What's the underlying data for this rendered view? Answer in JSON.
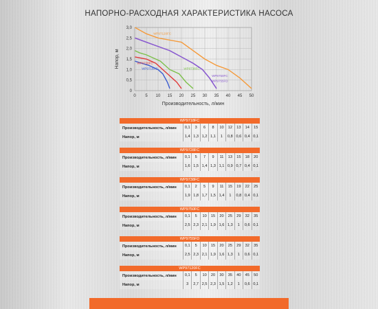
{
  "page_title": "НАПОРНО-РАСХОДНАЯ ХАРАКТЕРИСТИКА НАСОСА",
  "chart_data": {
    "type": "line",
    "xlabel": "Производительность, л/мин",
    "ylabel": "Напор, м",
    "xlim": [
      0,
      50
    ],
    "ylim": [
      0,
      3.0
    ],
    "x_ticks": [
      "0",
      "5",
      "10",
      "15",
      "20",
      "25",
      "30",
      "35",
      "40",
      "45",
      "50"
    ],
    "y_ticks": [
      "0",
      "0,5",
      "1,0",
      "1,5",
      "2,0",
      "2,5",
      "3,0"
    ],
    "grid": true,
    "series": [
      {
        "name": "WP9718FC",
        "color": "#3a5bd0",
        "x": [
          0.1,
          3,
          6,
          8,
          10,
          12,
          13,
          14,
          15
        ],
        "y": [
          1.4,
          1.3,
          1.2,
          1.1,
          1,
          0.8,
          0.6,
          0.4,
          0.1
        ]
      },
      {
        "name": "WP9728FC",
        "color": "#e03a3a",
        "x": [
          0.1,
          5,
          7,
          9,
          11,
          13,
          15,
          18,
          20
        ],
        "y": [
          1.6,
          1.5,
          1.4,
          1.3,
          1.1,
          0.9,
          0.7,
          0.4,
          0.1
        ]
      },
      {
        "name": "WP9738FC",
        "color": "#7cc04a",
        "x": [
          0.1,
          2,
          5,
          9,
          11,
          15,
          19,
          22,
          25
        ],
        "y": [
          1.9,
          1.8,
          1.7,
          1.5,
          1.4,
          1,
          0.8,
          0.4,
          0.1
        ]
      },
      {
        "name": "WP9750FC",
        "color": "#8a5bd0",
        "x": [
          0.1,
          5,
          10,
          15,
          20,
          25,
          29,
          32,
          35
        ],
        "y": [
          2.5,
          2.3,
          2.1,
          1.9,
          1.6,
          1.3,
          1,
          0.6,
          0.1
        ]
      },
      {
        "name": "WP9755FD",
        "color": "#8a5bd0",
        "x": [
          0.1,
          5,
          10,
          15,
          20,
          25,
          29,
          32,
          35
        ],
        "y": [
          2.5,
          2.3,
          2.1,
          1.9,
          1.6,
          1.3,
          1,
          0.6,
          0.1
        ]
      },
      {
        "name": "WP97120FC",
        "color": "#f59a3a",
        "x": [
          0.1,
          5,
          10,
          20,
          30,
          35,
          40,
          45,
          50
        ],
        "y": [
          3,
          2.7,
          2.5,
          2.3,
          1.5,
          1.2,
          1,
          0.6,
          0.1
        ]
      }
    ]
  },
  "tables": [
    {
      "model": "WP9718FC",
      "flow_label": "Производительность, л/мин",
      "head_label": "Напор, м",
      "flow": [
        "0,1",
        "3",
        "6",
        "8",
        "10",
        "12",
        "13",
        "14",
        "15"
      ],
      "head": [
        "1,4",
        "1,3",
        "1,2",
        "1,1",
        "1",
        "0,8",
        "0,6",
        "0,4",
        "0,1"
      ]
    },
    {
      "model": "WP9728FC",
      "flow_label": "Производительность, л/мин",
      "head_label": "Напор, м",
      "flow": [
        "0,1",
        "5",
        "7",
        "9",
        "11",
        "13",
        "15",
        "18",
        "20"
      ],
      "head": [
        "1,6",
        "1,5",
        "1,4",
        "1,3",
        "1,1",
        "0,9",
        "0,7",
        "0,4",
        "0,1"
      ]
    },
    {
      "model": "WP9738FC",
      "flow_label": "Производительность, л/мин",
      "head_label": "Напор, м",
      "flow": [
        "0,1",
        "2",
        "5",
        "9",
        "11",
        "15",
        "19",
        "22",
        "25"
      ],
      "head": [
        "1,9",
        "1,8",
        "1,7",
        "1,5",
        "1,4",
        "1",
        "0,8",
        "0,4",
        "0,1"
      ]
    },
    {
      "model": "WP9750FC",
      "flow_label": "Производительность, л/мин",
      "head_label": "Напор, м",
      "flow": [
        "0,1",
        "5",
        "10",
        "15",
        "20",
        "25",
        "29",
        "32",
        "35"
      ],
      "head": [
        "2,5",
        "2,3",
        "2,1",
        "1,9",
        "1,6",
        "1,3",
        "1",
        "0,6",
        "0,1"
      ]
    },
    {
      "model": "WP9755FD",
      "flow_label": "Производительность, л/мин",
      "head_label": "Напор, м",
      "flow": [
        "0,1",
        "5",
        "10",
        "15",
        "20",
        "25",
        "29",
        "32",
        "35"
      ],
      "head": [
        "2,5",
        "2,3",
        "2,1",
        "1,9",
        "1,6",
        "1,3",
        "1",
        "0,6",
        "0,1"
      ]
    },
    {
      "model": "WP97120FC",
      "flow_label": "Производительность, л/мин",
      "head_label": "Напор, м",
      "flow": [
        "0,1",
        "5",
        "10",
        "20",
        "30",
        "35",
        "40",
        "45",
        "50"
      ],
      "head": [
        "3",
        "2,7",
        "2,5",
        "2,3",
        "1,5",
        "1,2",
        "1",
        "0,6",
        "0,1"
      ]
    }
  ]
}
